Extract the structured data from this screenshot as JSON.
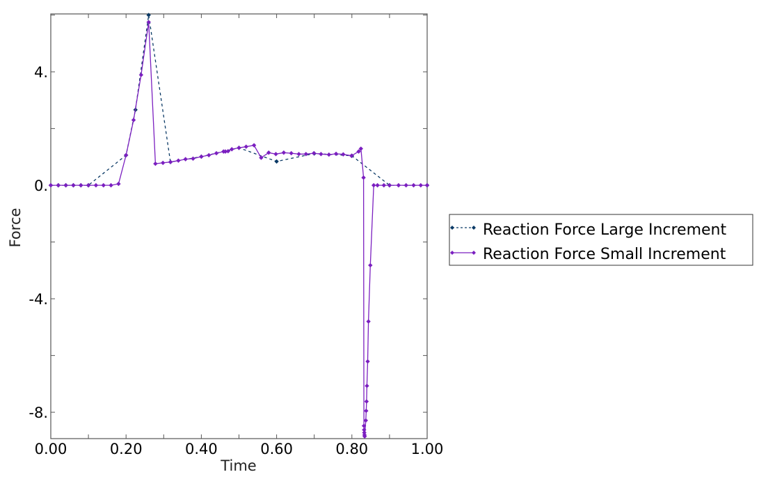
{
  "chart_data": {
    "type": "line",
    "title": "",
    "xlabel": "Time",
    "ylabel": "Force",
    "xlim": [
      0.0,
      1.0
    ],
    "ylim": [
      -8.93,
      6.04
    ],
    "x_ticks": [
      0.0,
      0.1,
      0.2,
      0.3,
      0.4,
      0.5,
      0.6,
      0.7,
      0.8,
      0.9,
      1.0
    ],
    "x_tick_labels": [
      "0.00",
      "",
      "0.20",
      "",
      "0.40",
      "",
      "0.60",
      "",
      "0.80",
      "",
      "1.00"
    ],
    "y_ticks": [
      -8,
      -6,
      -4,
      -2,
      0,
      2,
      4,
      6
    ],
    "y_tick_labels": [
      "-8.",
      "",
      "-4.",
      "",
      "0.",
      "",
      "4.",
      ""
    ],
    "grid": false,
    "legend_placement": "right",
    "series": [
      {
        "name": "Reaction Force Large Increment",
        "color": "#0b3a66",
        "style": "dashed",
        "x": [
          0.0,
          0.02,
          0.04,
          0.06,
          0.08,
          0.1,
          0.2,
          0.225,
          0.26,
          0.318,
          0.4,
          0.5,
          0.6,
          0.7,
          0.8,
          0.9,
          1.0
        ],
        "y": [
          0,
          0,
          0,
          0,
          0,
          0,
          1.06,
          2.66,
          6.0,
          0.82,
          1.01,
          1.32,
          0.84,
          1.12,
          1.04,
          0,
          0
        ]
      },
      {
        "name": "Reaction Force Small Increment",
        "color": "#7b1fc0",
        "style": "solid",
        "x": [
          0.0,
          0.02,
          0.04,
          0.06,
          0.08,
          0.1,
          0.12,
          0.14,
          0.16,
          0.18,
          0.2,
          0.22,
          0.24,
          0.26,
          0.278,
          0.298,
          0.318,
          0.339,
          0.358,
          0.378,
          0.4,
          0.42,
          0.44,
          0.459,
          0.464,
          0.471,
          0.481,
          0.5,
          0.519,
          0.54,
          0.559,
          0.579,
          0.598,
          0.619,
          0.639,
          0.659,
          0.678,
          0.699,
          0.718,
          0.739,
          0.758,
          0.777,
          0.799,
          0.818,
          0.824,
          0.831,
          0.832,
          0.8325,
          0.833,
          0.8335,
          0.834,
          0.837,
          0.838,
          0.839,
          0.84,
          0.842,
          0.844,
          0.849,
          0.858,
          0.868,
          0.885,
          0.9,
          0.924,
          0.944,
          0.964,
          0.983,
          1.0
        ],
        "y": [
          0,
          0,
          0,
          0,
          0,
          0,
          0,
          0,
          0,
          0.05,
          1.06,
          2.3,
          3.89,
          5.75,
          0.76,
          0.79,
          0.82,
          0.87,
          0.92,
          0.94,
          1.01,
          1.06,
          1.13,
          1.19,
          1.19,
          1.2,
          1.27,
          1.32,
          1.36,
          1.41,
          0.97,
          1.15,
          1.1,
          1.15,
          1.13,
          1.1,
          1.1,
          1.13,
          1.1,
          1.08,
          1.11,
          1.09,
          1.04,
          1.19,
          1.29,
          0.27,
          -8.48,
          -8.62,
          -8.72,
          -8.8,
          -8.85,
          -8.29,
          -7.95,
          -7.62,
          -7.07,
          -6.21,
          -4.8,
          -2.82,
          0,
          0,
          0,
          0,
          0,
          0,
          0,
          0,
          0
        ]
      }
    ]
  }
}
